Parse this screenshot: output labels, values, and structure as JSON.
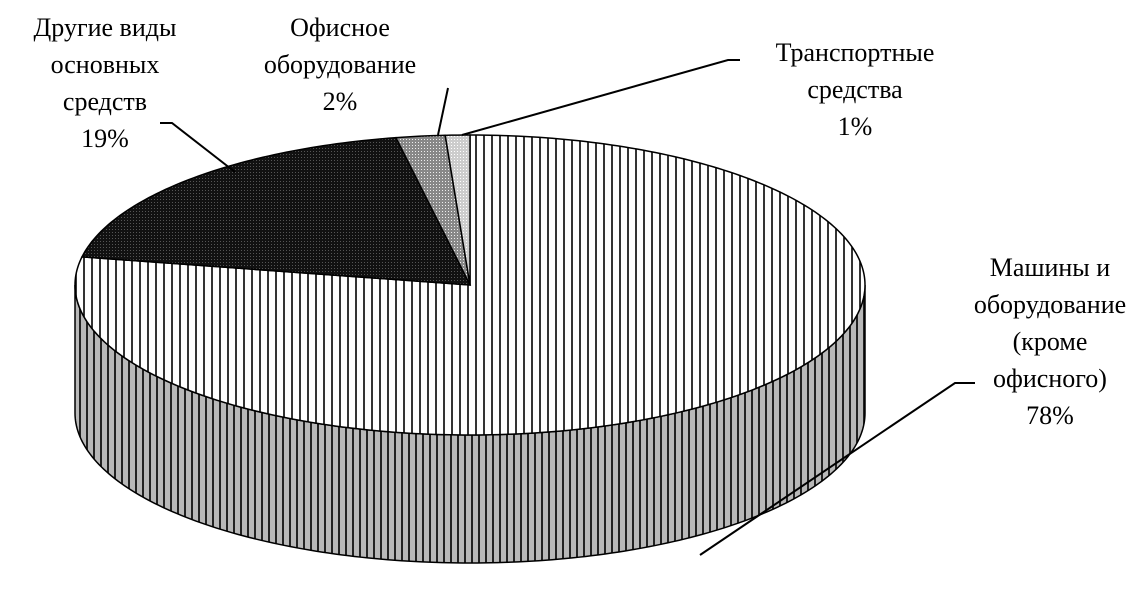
{
  "chart_data": {
    "type": "pie3d",
    "categories": [
      "Машины и оборудование (кроме офисного)",
      "Другие виды основных средств",
      "Офисное оборудование",
      "Транспортные средства"
    ],
    "values": [
      78,
      19,
      2,
      1
    ],
    "value_labels": [
      "78%",
      "19%",
      "2%",
      "1%"
    ]
  }
}
